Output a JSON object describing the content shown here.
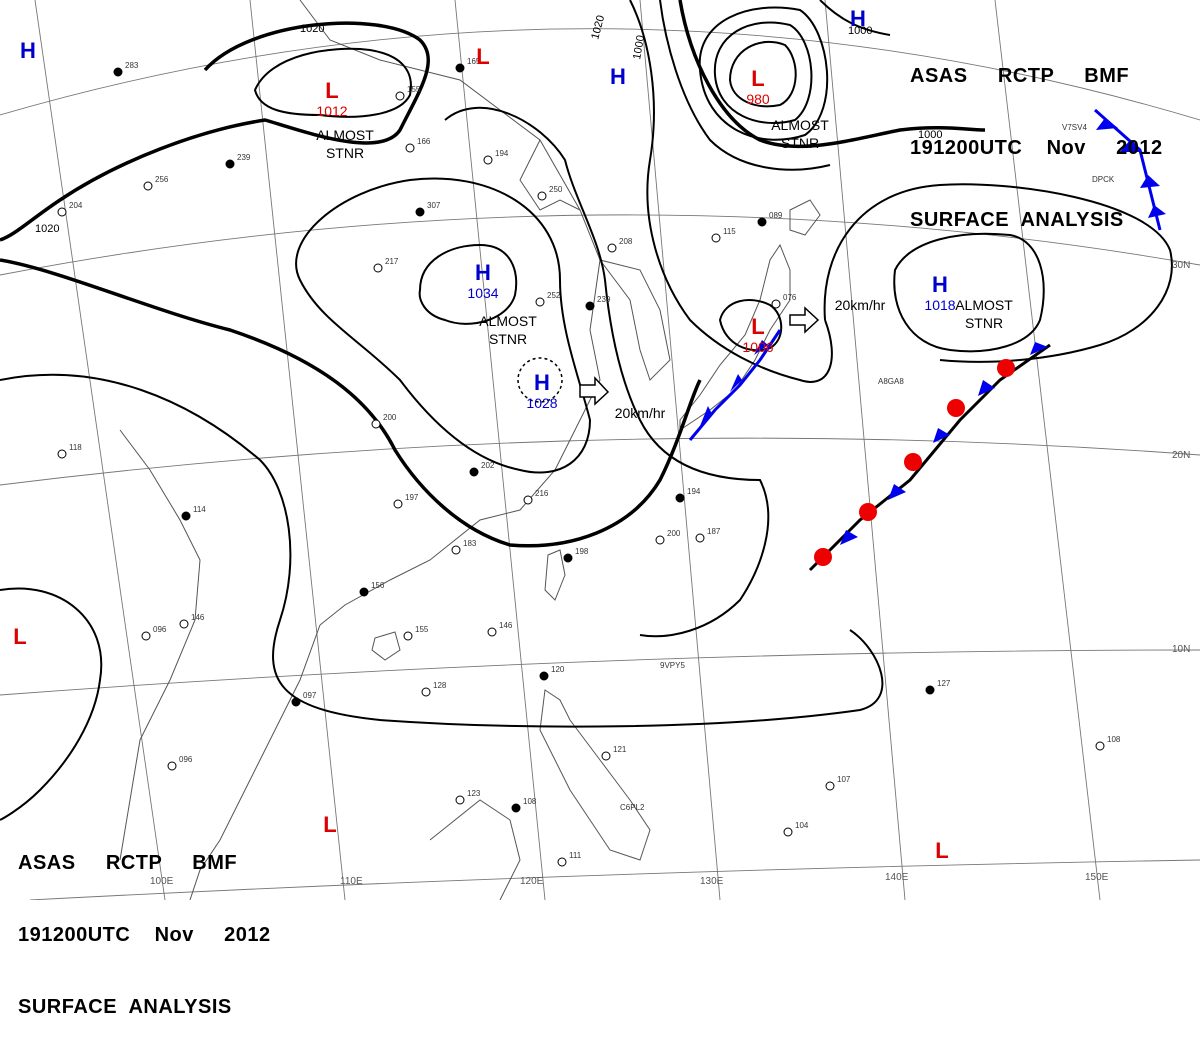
{
  "header": {
    "line1": [
      "ASAS",
      "RCTP",
      "BMF"
    ],
    "line2": [
      "191200UTC",
      "Nov",
      "2012"
    ],
    "line3": "SURFACE  ANALYSIS"
  },
  "lat_labels": [
    "30N",
    "20N",
    "10N"
  ],
  "lon_labels": [
    "100E",
    "110E",
    "120E",
    "130E",
    "140E",
    "150E"
  ],
  "isobar_labels": [
    "1020",
    "1020",
    "1020",
    "1000",
    "1000",
    "1000"
  ],
  "pressure_centers": [
    {
      "symbol": "H",
      "value": "1034",
      "color": "#0000cc"
    },
    {
      "symbol": "H",
      "value": "1028",
      "color": "#0000cc"
    },
    {
      "symbol": "H",
      "value": "1018",
      "color": "#0000cc"
    },
    {
      "symbol": "L",
      "value": "1012",
      "color": "#dd0000"
    },
    {
      "symbol": "L",
      "value": "980",
      "color": "#dd0000"
    },
    {
      "symbol": "L",
      "value": "1006",
      "color": "#dd0000"
    },
    {
      "symbol": "H",
      "value": "",
      "color": "#0000cc"
    },
    {
      "symbol": "H",
      "value": "",
      "color": "#0000cc"
    },
    {
      "symbol": "H",
      "value": "",
      "color": "#0000cc"
    },
    {
      "symbol": "L",
      "value": "",
      "color": "#dd0000"
    },
    {
      "symbol": "L",
      "value": "",
      "color": "#dd0000"
    },
    {
      "symbol": "L",
      "value": "",
      "color": "#dd0000"
    },
    {
      "symbol": "L",
      "value": "",
      "color": "#dd0000"
    }
  ],
  "annotations": [
    {
      "line1": "ALMOST",
      "line2": "STNR"
    },
    {
      "line1": "ALMOST",
      "line2": "STNR"
    },
    {
      "line1": "ALMOST",
      "line2": "STNR"
    },
    {
      "line1": "ALMOST",
      "line2": "STNR"
    }
  ],
  "motions": [
    "20km/hr",
    "20km/hr"
  ],
  "stations": [
    {
      "id": "V7SV4"
    },
    {
      "id": "DPCK"
    },
    {
      "id": "A8GA8"
    },
    {
      "id": "9VPY5"
    },
    {
      "id": "C6PL2"
    }
  ],
  "station_values": [
    "283",
    "256",
    "204",
    "239",
    "217",
    "155",
    "165",
    "166",
    "194",
    "307",
    "250",
    "208",
    "239",
    "252",
    "115",
    "089",
    "076",
    "118",
    "114",
    "200",
    "197",
    "202",
    "216",
    "183",
    "198",
    "200",
    "187",
    "194",
    "146",
    "155",
    "156",
    "146",
    "096",
    "097",
    "096",
    "128",
    "120",
    "121",
    "107",
    "108",
    "104",
    "111",
    "127",
    "108",
    "123"
  ],
  "colors": {
    "high": "#0000cc",
    "low": "#dd0000",
    "cold_front": "#0000ee",
    "warm_front": "#ee0000"
  }
}
